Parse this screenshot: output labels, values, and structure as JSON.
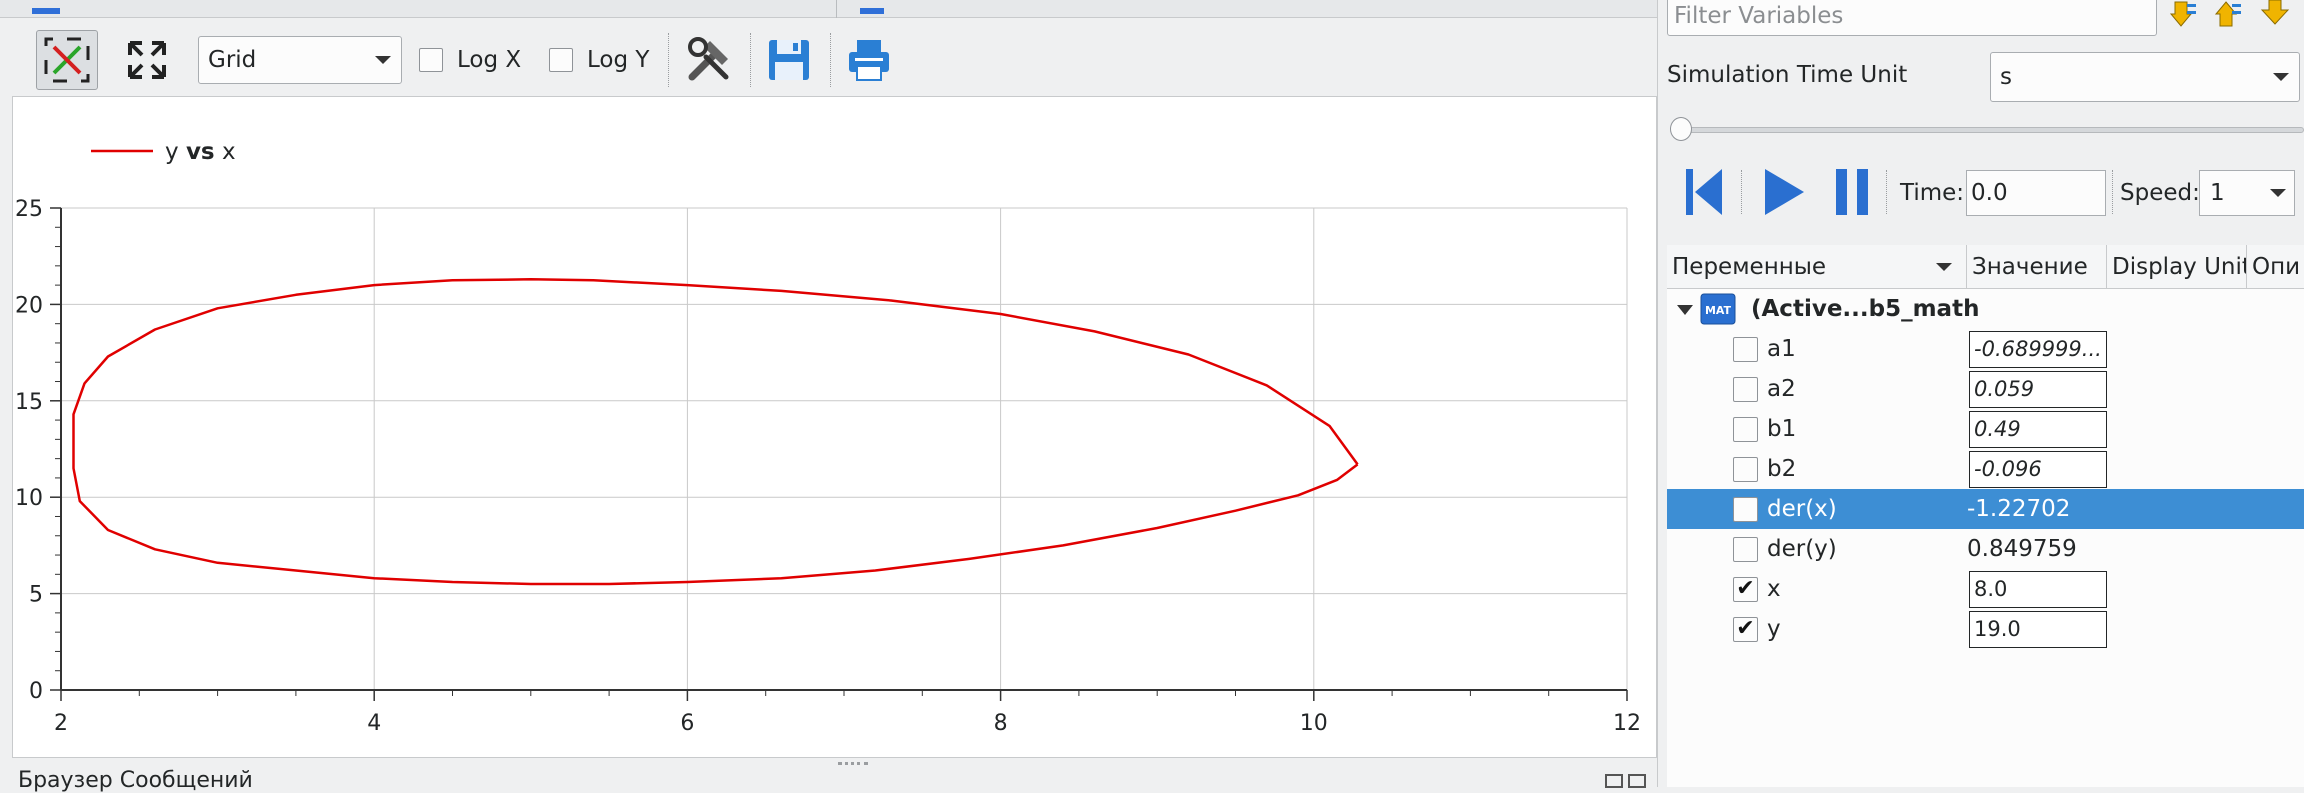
{
  "toolbar": {
    "grid_combo": "Grid",
    "logx_label": "Log X",
    "logy_label": "Log Y"
  },
  "chart_data": {
    "type": "line",
    "series": [
      {
        "name": "y vs x",
        "color": "#e00000",
        "x": [
          10.28,
          10.1,
          9.7,
          9.2,
          8.6,
          8.0,
          7.3,
          6.6,
          6.0,
          5.4,
          5.0,
          4.5,
          4.0,
          3.5,
          3.0,
          2.6,
          2.3,
          2.15,
          2.08,
          2.08,
          2.12,
          2.3,
          2.6,
          3.0,
          3.5,
          4.0,
          4.5,
          5.0,
          5.5,
          6.0,
          6.6,
          7.2,
          7.8,
          8.4,
          9.0,
          9.5,
          9.9,
          10.15,
          10.28
        ],
        "y": [
          11.7,
          13.7,
          15.8,
          17.4,
          18.6,
          19.5,
          20.2,
          20.7,
          21.0,
          21.25,
          21.3,
          21.25,
          21.0,
          20.5,
          19.8,
          18.7,
          17.3,
          15.9,
          14.3,
          11.5,
          9.8,
          8.3,
          7.3,
          6.6,
          6.2,
          5.8,
          5.6,
          5.5,
          5.5,
          5.6,
          5.8,
          6.2,
          6.8,
          7.5,
          8.4,
          9.3,
          10.1,
          10.9,
          11.7
        ]
      }
    ],
    "xlim": [
      2,
      12
    ],
    "ylim": [
      0,
      25
    ],
    "x_ticks": [
      "2",
      "4",
      "6",
      "8",
      "10",
      "12"
    ],
    "y_ticks": [
      "0",
      "5",
      "10",
      "15",
      "20",
      "25"
    ],
    "grid": true,
    "legend_position": "top-left"
  },
  "legend": {
    "y": "y",
    "vs": "vs",
    "x": "x"
  },
  "bottom": {
    "message_browser": "Браузер Сообщений"
  },
  "right_panel": {
    "filter_placeholder": "Filter Variables",
    "sim_time_unit_label": "Simulation Time Unit",
    "sim_time_unit_value": "s",
    "time_label": "Time:",
    "time_value": "0.0",
    "speed_label": "Speed:",
    "speed_value": "1",
    "columns": [
      "Переменные",
      "Значение",
      "Display Unit",
      "Опи"
    ],
    "root_label": "(Active...b5_math",
    "mat_icon_text": "MAT",
    "variables": [
      {
        "name": "a1",
        "value": "-0.689999...",
        "checked": false,
        "editable": true
      },
      {
        "name": "a2",
        "value": "0.059",
        "checked": false,
        "editable": true
      },
      {
        "name": "b1",
        "value": "0.49",
        "checked": false,
        "editable": true
      },
      {
        "name": "b2",
        "value": "-0.096",
        "checked": false,
        "editable": true
      },
      {
        "name": "der(x)",
        "value": "-1.22702",
        "checked": false,
        "editable": false,
        "selected": true
      },
      {
        "name": "der(y)",
        "value": "0.849759",
        "checked": false,
        "editable": false
      },
      {
        "name": "x",
        "value": "8.0",
        "checked": true,
        "editable": true
      },
      {
        "name": "y",
        "value": "19.0",
        "checked": true,
        "editable": true
      }
    ]
  }
}
